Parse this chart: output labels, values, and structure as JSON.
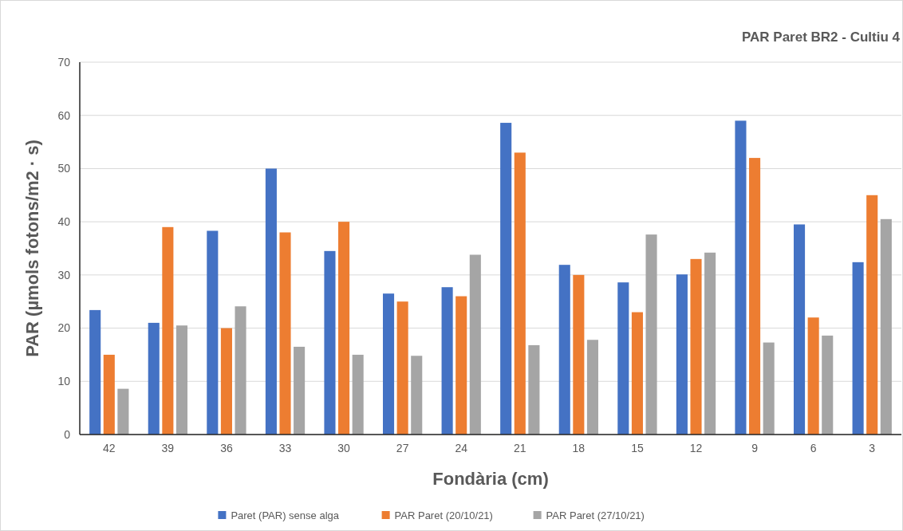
{
  "chart_data": {
    "type": "bar",
    "title": "PAR Paret BR2 - Cultiu 4",
    "xlabel": "Fondària (cm)",
    "ylabel": "PAR (µmols fotons/m2 · s)",
    "categories": [
      "42",
      "39",
      "36",
      "33",
      "30",
      "27",
      "24",
      "21",
      "18",
      "15",
      "12",
      "9",
      "6",
      "3"
    ],
    "series": [
      {
        "name": "Paret (PAR) sense alga",
        "color": "#4472c4",
        "values": [
          23.4,
          21,
          38.3,
          50,
          34.5,
          26.5,
          27.7,
          58.6,
          31.9,
          28.6,
          30.1,
          59,
          39.5,
          32.4
        ]
      },
      {
        "name": "PAR Paret (20/10/21)",
        "color": "#ed7d31",
        "values": [
          15,
          39,
          20,
          38,
          40,
          25,
          26,
          53,
          30,
          23,
          33,
          52,
          22,
          45
        ]
      },
      {
        "name": "PAR Paret (27/10/21)",
        "color": "#a5a5a5",
        "values": [
          8.6,
          20.5,
          24.1,
          16.5,
          15,
          14.8,
          33.8,
          16.8,
          17.8,
          37.6,
          34.2,
          17.3,
          18.6,
          40.5
        ]
      }
    ],
    "ylim": [
      0,
      70
    ],
    "yticks": [
      0,
      10,
      20,
      30,
      40,
      50,
      60,
      70
    ],
    "grid": "y",
    "legend": "bottom"
  }
}
